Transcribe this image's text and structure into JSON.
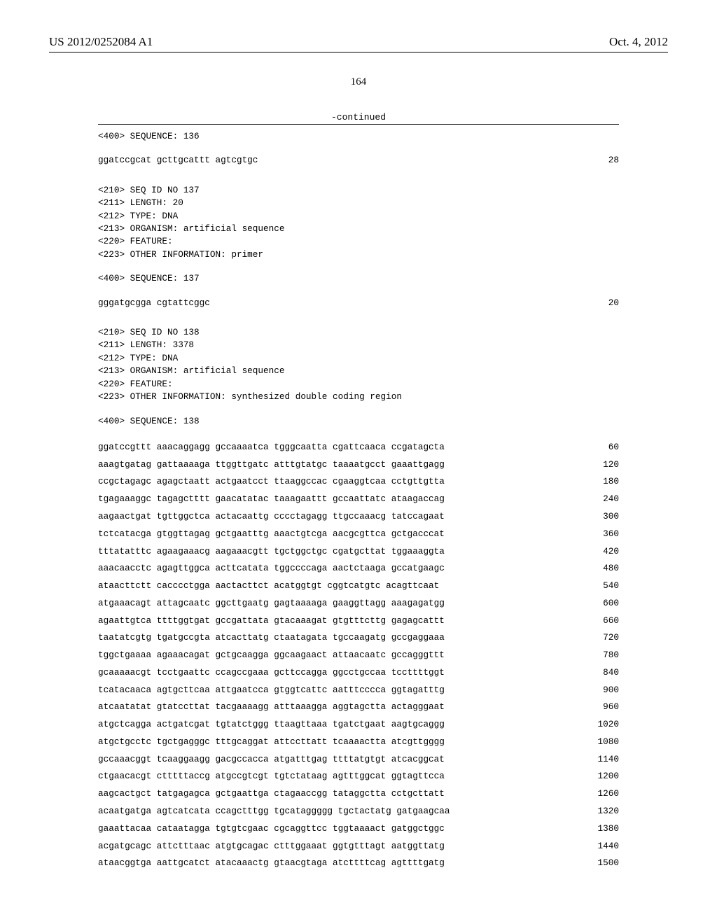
{
  "header": {
    "pub_number": "US 2012/0252084 A1",
    "pub_date": "Oct. 4, 2012"
  },
  "page_number": "164",
  "continued_label": "-continued",
  "seq136": {
    "line": "<400> SEQUENCE: 136",
    "seq": "ggatccgcat gcttgcattt agtcgtgc",
    "len": "28"
  },
  "seq137": {
    "meta": "<210> SEQ ID NO 137\n<211> LENGTH: 20\n<212> TYPE: DNA\n<213> ORGANISM: artificial sequence\n<220> FEATURE:\n<223> OTHER INFORMATION: primer",
    "head": "<400> SEQUENCE: 137",
    "seq": "gggatgcgga cgtattcggc",
    "len": "20"
  },
  "seq138": {
    "meta": "<210> SEQ ID NO 138\n<211> LENGTH: 3378\n<212> TYPE: DNA\n<213> ORGANISM: artificial sequence\n<220> FEATURE:\n<223> OTHER INFORMATION: synthesized double coding region",
    "head": "<400> SEQUENCE: 138",
    "rows": [
      {
        "s": "ggatccgttt aaacaggagg gccaaaatca tgggcaatta cgattcaaca ccgatagcta",
        "n": "60"
      },
      {
        "s": "aaagtgatag gattaaaaga ttggttgatc atttgtatgc taaaatgcct gaaattgagg",
        "n": "120"
      },
      {
        "s": "ccgctagagc agagctaatt actgaatcct ttaaggccac cgaaggtcaa cctgttgtta",
        "n": "180"
      },
      {
        "s": "tgagaaaggc tagagctttt gaacatatac taaagaattt gccaattatc ataagaccag",
        "n": "240"
      },
      {
        "s": "aagaactgat tgttggctca actacaattg cccctagagg ttgccaaacg tatccagaat",
        "n": "300"
      },
      {
        "s": "tctcatacga gtggttagag gctgaatttg aaactgtcga aacgcgttca gctgacccat",
        "n": "360"
      },
      {
        "s": "tttatatttc agaagaaacg aagaaacgtt tgctggctgc cgatgcttat tggaaaggta",
        "n": "420"
      },
      {
        "s": "aaacaacctc agagttggca acttcatata tggccccaga aactctaaga gccatgaagc",
        "n": "480"
      },
      {
        "s": "ataacttctt cacccctgga aactacttct acatggtgt cggtcatgtc acagttcaat",
        "n": "540"
      },
      {
        "s": "atgaaacagt attagcaatc ggcttgaatg gagtaaaaga gaaggttagg aaagagatgg",
        "n": "600"
      },
      {
        "s": "agaattgtca ttttggtgat gccgattata gtacaaagat gtgtttcttg gagagcattt",
        "n": "660"
      },
      {
        "s": "taatatcgtg tgatgccgta atcacttatg ctaatagata tgccaagatg gccgaggaaa",
        "n": "720"
      },
      {
        "s": "tggctgaaaa agaaacagat gctgcaagga ggcaagaact attaacaatc gccagggttt",
        "n": "780"
      },
      {
        "s": "gcaaaaacgt tcctgaattc ccagccgaaa gcttccagga ggcctgccaa tccttttggt",
        "n": "840"
      },
      {
        "s": "tcatacaaca agtgcttcaa attgaatcca gtggtcattc aatttcccca ggtagatttg",
        "n": "900"
      },
      {
        "s": "atcaatatat gtatccttat tacgaaaagg atttaaagga aggtagctta actagggaat",
        "n": "960"
      },
      {
        "s": "atgctcagga actgatcgat tgtatctggg ttaagttaaa tgatctgaat aagtgcaggg",
        "n": "1020"
      },
      {
        "s": "atgctgcctc tgctgagggc tttgcaggat attccttatt tcaaaactta atcgttgggg",
        "n": "1080"
      },
      {
        "s": "gccaaacggt tcaaggaagg gacgccacca atgatttgag ttttatgtgt atcacggcat",
        "n": "1140"
      },
      {
        "s": "ctgaacacgt ctttttaccg atgccgtcgt tgtctataag agtttggcat ggtagttcca",
        "n": "1200"
      },
      {
        "s": "aagcactgct tatgagagca gctgaattga ctagaaccgg tataggctta cctgcttatt",
        "n": "1260"
      },
      {
        "s": "acaatgatga agtcatcata ccagctttgg tgcataggggg tgctactatg gatgaagcaa",
        "n": "1320"
      },
      {
        "s": "gaaattacaa cataatagga tgtgtcgaac cgcaggttcc tggtaaaact gatggctggc",
        "n": "1380"
      },
      {
        "s": "acgatgcagc attctttaac atgtgcagac ctttggaaat ggtgtttagt aatggttatg",
        "n": "1440"
      },
      {
        "s": "ataacggtga aattgcatct atacaaactg gtaacgtaga atcttttcag agttttgatg",
        "n": "1500"
      }
    ]
  }
}
